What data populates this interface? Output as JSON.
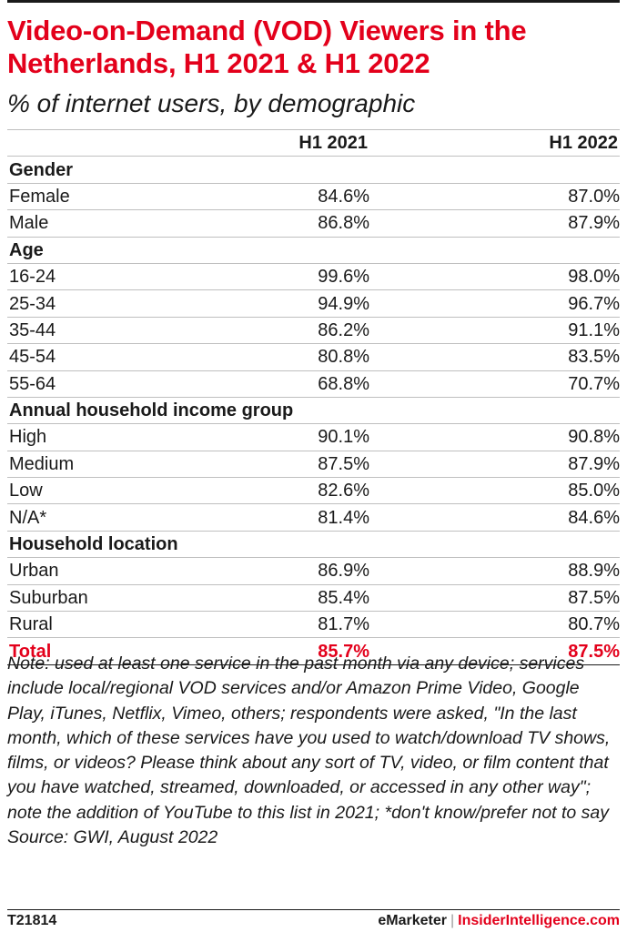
{
  "chart_data": {
    "type": "table",
    "title": "Video-on-Demand (VOD) Viewers in the Netherlands, H1 2021 & H1 2022",
    "subtitle": "% of internet users, by demographic",
    "columns": [
      "",
      "H1 2021",
      "H1 2022"
    ],
    "groups": [
      {
        "label": "Gender",
        "rows": [
          {
            "label": "Female",
            "values": [
              "84.6%",
              "87.0%"
            ]
          },
          {
            "label": "Male",
            "values": [
              "86.8%",
              "87.9%"
            ]
          }
        ]
      },
      {
        "label": "Age",
        "rows": [
          {
            "label": "16-24",
            "values": [
              "99.6%",
              "98.0%"
            ]
          },
          {
            "label": "25-34",
            "values": [
              "94.9%",
              "96.7%"
            ]
          },
          {
            "label": "35-44",
            "values": [
              "86.2%",
              "91.1%"
            ]
          },
          {
            "label": "45-54",
            "values": [
              "80.8%",
              "83.5%"
            ]
          },
          {
            "label": "55-64",
            "values": [
              "68.8%",
              "70.7%"
            ]
          }
        ]
      },
      {
        "label": "Annual household income group",
        "rows": [
          {
            "label": "High",
            "values": [
              "90.1%",
              "90.8%"
            ]
          },
          {
            "label": "Medium",
            "values": [
              "87.5%",
              "87.9%"
            ]
          },
          {
            "label": "Low",
            "values": [
              "82.6%",
              "85.0%"
            ]
          },
          {
            "label": "N/A*",
            "values": [
              "81.4%",
              "84.6%"
            ]
          }
        ]
      },
      {
        "label": "Household location",
        "rows": [
          {
            "label": "Urban",
            "values": [
              "86.9%",
              "88.9%"
            ]
          },
          {
            "label": "Suburban",
            "values": [
              "85.4%",
              "87.5%"
            ]
          },
          {
            "label": "Rural",
            "values": [
              "81.7%",
              "80.7%"
            ]
          }
        ]
      }
    ],
    "total": {
      "label": "Total",
      "values": [
        "85.7%",
        "87.5%"
      ]
    }
  },
  "notes": {
    "note": "Note: used at least one service in the past month via any device; services include local/regional VOD services and/or Amazon Prime Video, Google Play, iTunes, Netflix, Vimeo, others; respondents were asked, \"In the last month, which of these services have you used to watch/download TV shows, films, or videos? Please think about any sort of TV, video, or film content that you have watched, streamed, downloaded, or accessed in any other way\"; note the addition of YouTube to this list in 2021; *don't know/prefer not to say",
    "source": "Source: GWI, August 2022"
  },
  "footer": {
    "chart_id": "T21814",
    "brand_emarketer": "eMarketer",
    "brand_separator": "|",
    "brand_insider": "InsiderIntelligence.com"
  },
  "colors": {
    "accent": "#e3001b",
    "text": "#1a1a1a",
    "rule": "#bfbfbf"
  }
}
